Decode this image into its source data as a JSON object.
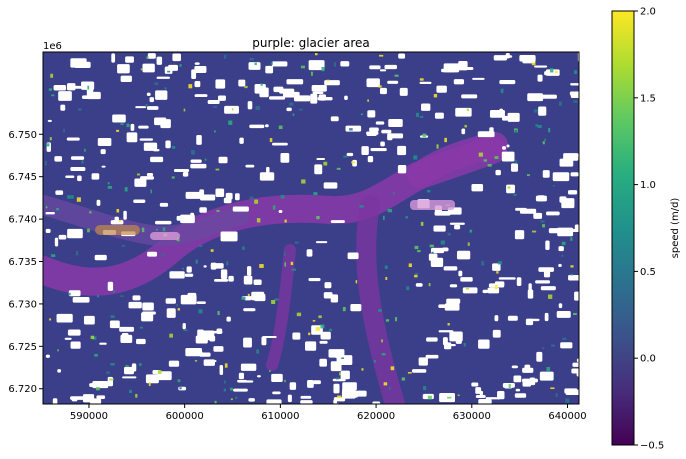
{
  "chart_data": {
    "type": "heatmap",
    "title": "purple: glacier area",
    "x_ticks": [
      590000,
      600000,
      610000,
      620000,
      630000,
      640000
    ],
    "x_tick_labels": [
      "590000",
      "600000",
      "610000",
      "620000",
      "630000",
      "640000"
    ],
    "xlim": [
      585200,
      641200
    ],
    "y_ticks": [
      6720000,
      6725000,
      6730000,
      6735000,
      6740000,
      6745000,
      6750000
    ],
    "y_tick_labels": [
      "6.720",
      "6.725",
      "6.730",
      "6.735",
      "6.740",
      "6.745",
      "6.750"
    ],
    "y_offset_label": "1e6",
    "ylim": [
      6718200,
      6759700
    ],
    "colorbar": {
      "label": "speed (m/d)",
      "range": [
        -0.5,
        2.0
      ],
      "ticks": [
        -0.5,
        0.0,
        0.5,
        1.0,
        1.5,
        2.0
      ],
      "tick_labels": [
        "−0.5",
        "0.0",
        "0.5",
        "1.0",
        "1.5",
        "2.0"
      ],
      "colormap": "viridis"
    },
    "overlay": {
      "meaning": "glacier area",
      "color": "#b43cc8"
    },
    "background_color": "#3b3f8a",
    "nodata_color": "#ffffff"
  }
}
